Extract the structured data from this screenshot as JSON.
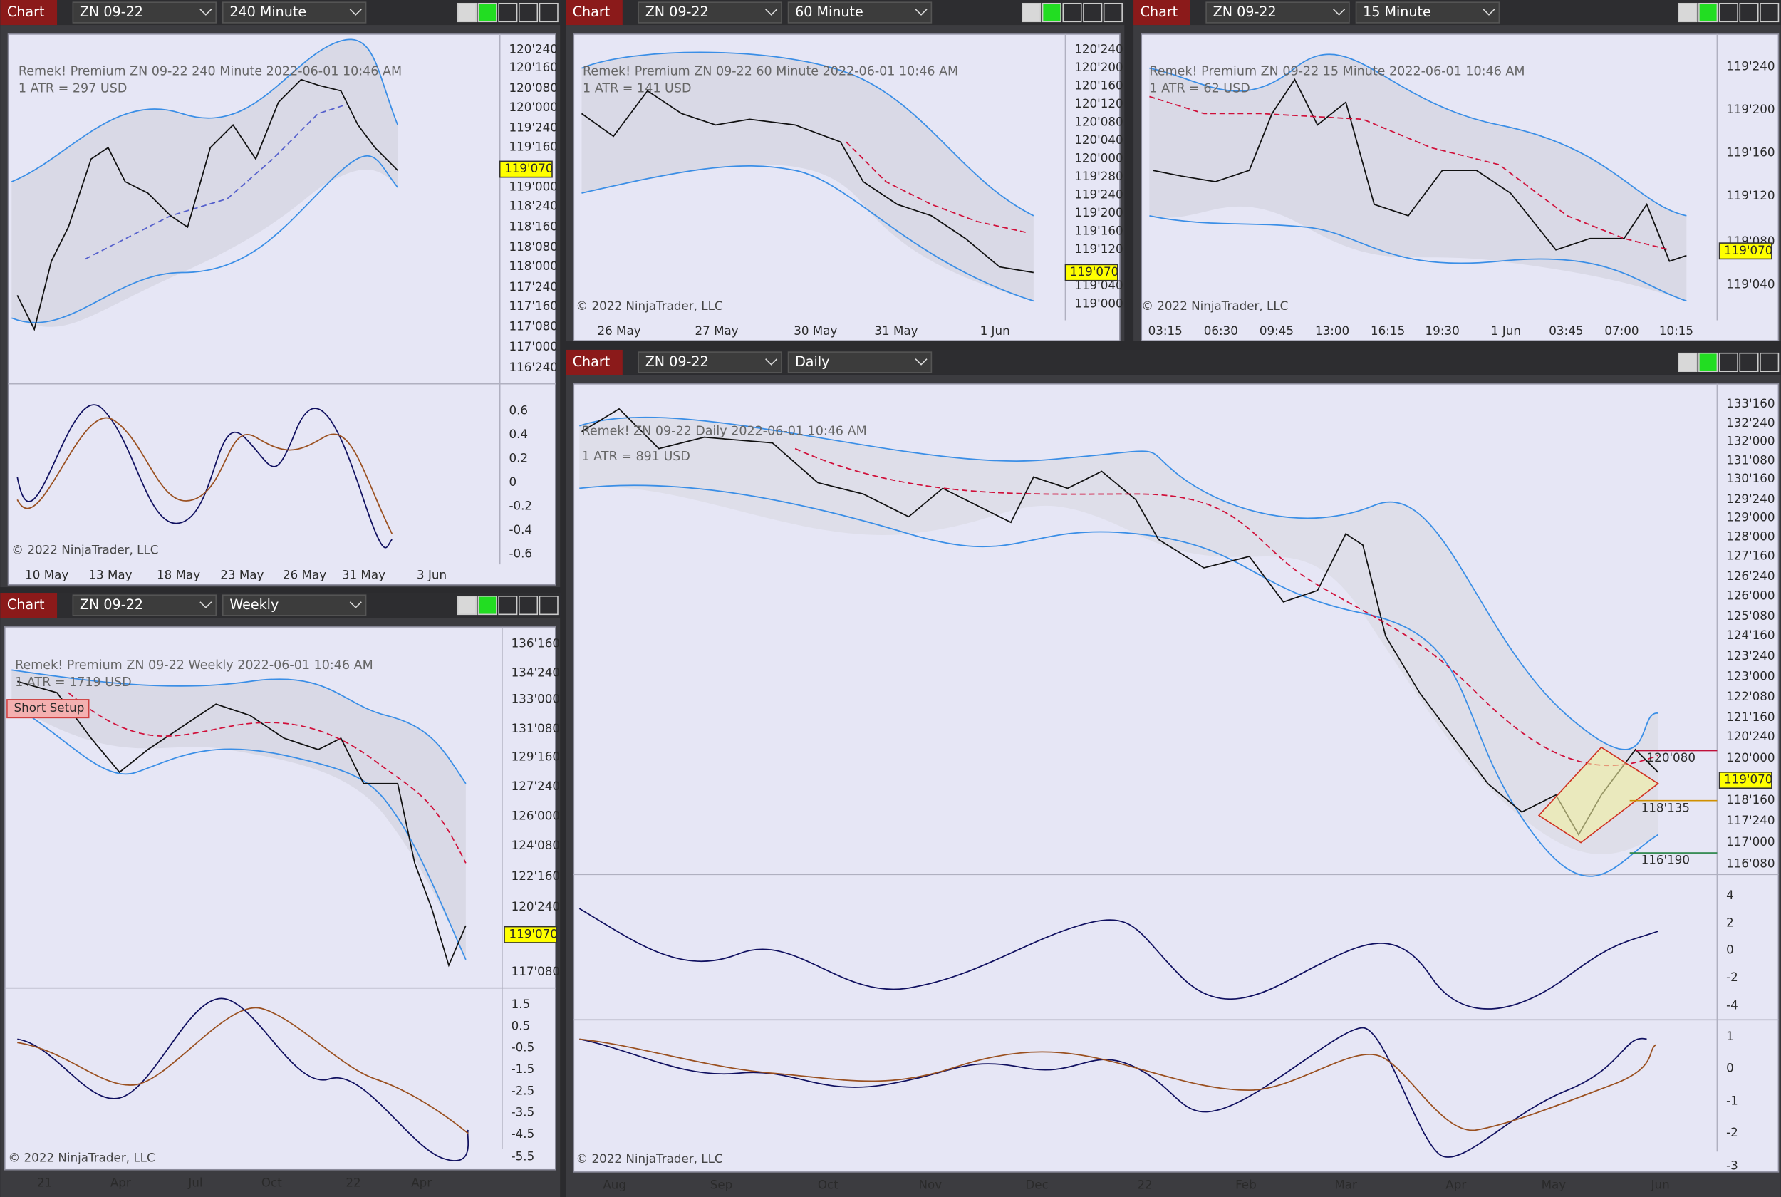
{
  "windows": [
    {
      "label": "Chart",
      "instrument": "ZN 09-22",
      "timeframe": "240 Minute",
      "header": "Remek!  Premium  ZN 09-22  240 Minute  2022-06-01 10:46 AM",
      "atr": "1 ATR = 297 USD",
      "price_axis": [
        "120'240",
        "120'160",
        "120'080",
        "120'000",
        "119'240",
        "119'160",
        "119'000",
        "118'240",
        "118'160",
        "118'080",
        "118'000",
        "117'240",
        "117'160",
        "117'080",
        "117'000",
        "116'240"
      ],
      "price_marker": "119'070",
      "indicator_axis": [
        "0.6",
        "0.4",
        "0.2",
        "0",
        "-0.2",
        "-0.4",
        "-0.6"
      ],
      "time_axis": [
        "10 May",
        "13 May",
        "18 May",
        "23 May",
        "26 May",
        "31 May",
        "3 Jun"
      ],
      "copyright": "© 2022 NinjaTrader, LLC"
    },
    {
      "label": "Chart",
      "instrument": "ZN 09-22",
      "timeframe": "60 Minute",
      "header": "Remek!  Premium  ZN 09-22  60 Minute  2022-06-01 10:46 AM",
      "atr": "1 ATR = 141 USD",
      "price_axis": [
        "120'240",
        "120'200",
        "120'160",
        "120'120",
        "120'080",
        "120'040",
        "120'000",
        "119'280",
        "119'240",
        "119'200",
        "119'160",
        "119'120",
        "119'040",
        "119'000"
      ],
      "price_marker": "119'070",
      "time_axis": [
        "26 May",
        "27 May",
        "30 May",
        "31 May",
        "1 Jun"
      ],
      "copyright": "© 2022 NinjaTrader, LLC"
    },
    {
      "label": "Chart",
      "instrument": "ZN 09-22",
      "timeframe": "15 Minute",
      "header": "Remek!  Premium  ZN 09-22  15 Minute  2022-06-01 10:46 AM",
      "atr": "1 ATR = 62 USD",
      "price_axis": [
        "119'240",
        "119'200",
        "119'160",
        "119'120",
        "119'080",
        "119'040"
      ],
      "price_marker": "119'070",
      "time_axis": [
        "03:15",
        "06:30",
        "09:45",
        "13:00",
        "16:15",
        "19:30",
        "1 Jun",
        "03:45",
        "07:00",
        "10:15"
      ],
      "copyright": "© 2022 NinjaTrader, LLC"
    },
    {
      "label": "Chart",
      "instrument": "ZN 09-22",
      "timeframe": "Weekly",
      "header": "Remek!  Premium  ZN 09-22  Weekly  2022-06-01 10:46 AM",
      "atr": "1 ATR = 1719 USD",
      "setup": "Short Setup",
      "price_axis": [
        "136'160",
        "134'240",
        "133'000",
        "131'080",
        "129'160",
        "127'240",
        "126'000",
        "124'080",
        "122'160",
        "120'240",
        "117'080"
      ],
      "price_marker": "119'070",
      "indicator_axis": [
        "1.5",
        "0.5",
        "-0.5",
        "-1.5",
        "-2.5",
        "-3.5",
        "-4.5",
        "-5.5"
      ],
      "time_axis": [
        "21",
        "Apr",
        "Jul",
        "Oct",
        "22",
        "Apr"
      ],
      "copyright": "© 2022 NinjaTrader, LLC"
    },
    {
      "label": "Chart",
      "instrument": "ZN 09-22",
      "timeframe": "Daily",
      "header": "Remek!  ZN 09-22  Daily  2022-06-01 10:46 AM",
      "atr": "1 ATR = 891 USD",
      "price_axis": [
        "133'160",
        "132'240",
        "132'000",
        "131'080",
        "130'160",
        "129'240",
        "129'000",
        "128'000",
        "127'160",
        "126'240",
        "126'000",
        "125'080",
        "124'160",
        "123'240",
        "123'000",
        "122'080",
        "121'160",
        "120'240",
        "120'000",
        "118'160",
        "117'240",
        "117'000",
        "116'080"
      ],
      "price_marker": "119'070",
      "levels": [
        "120'080",
        "118'135",
        "116'190"
      ],
      "indicator_axis": [
        "4",
        "2",
        "0",
        "-2",
        "-4"
      ],
      "indicator2_axis": [
        "1",
        "0",
        "-1",
        "-2",
        "-3"
      ],
      "time_axis": [
        "Aug",
        "Sep",
        "Oct",
        "Nov",
        "Dec",
        "22",
        "Feb",
        "Mar",
        "Apr",
        "May",
        "Jun"
      ],
      "copyright": "© 2022 NinjaTrader, LLC"
    }
  ]
}
